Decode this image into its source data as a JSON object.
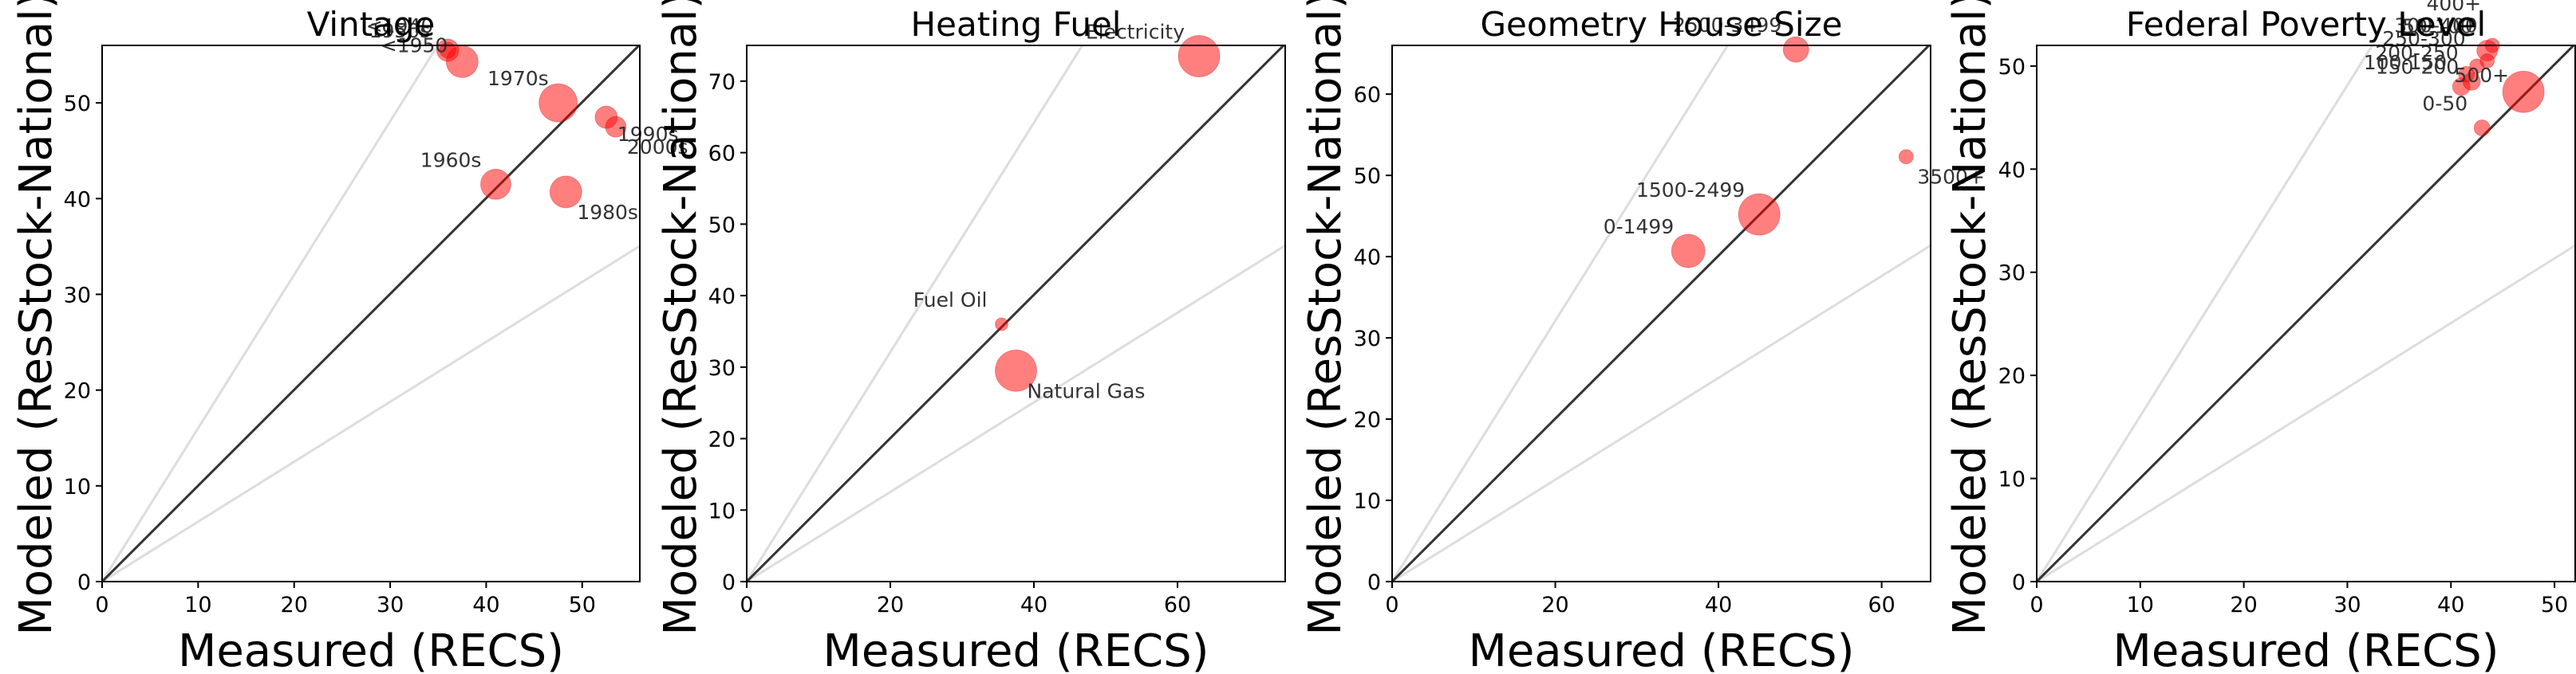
{
  "figure": {
    "background": "#ffffff",
    "marker_color": "#ff0000",
    "marker_edge": "#cc0000",
    "diag_color": "#333333",
    "guide_color": "#dddddd"
  },
  "chart_data": [
    {
      "type": "scatter",
      "title": "Vintage",
      "xlabel": "Measured (RECS)",
      "ylabel": "Modeled (ResStock-National)",
      "xlim": [
        0,
        56
      ],
      "ylim": [
        0,
        56
      ],
      "xticks": [
        0,
        10,
        20,
        30,
        40,
        50
      ],
      "yticks": [
        0,
        10,
        20,
        30,
        40,
        50
      ],
      "points": [
        {
          "label": "<1940",
          "x": 36,
          "y": 55.5,
          "size": 14,
          "label_pos": "upper-left"
        },
        {
          "label": "<1950",
          "x": 37.5,
          "y": 54.3,
          "size": 20,
          "label_pos": "left"
        },
        {
          "label": "1950s",
          "x": 36,
          "y": 55.5,
          "size": 10,
          "label_pos": "left-up"
        },
        {
          "label": "1970s",
          "x": 47.5,
          "y": 50,
          "size": 24,
          "label_pos": "upper-left-far"
        },
        {
          "label": "1990s",
          "x": 52.5,
          "y": 48.5,
          "size": 14,
          "label_pos": "right"
        },
        {
          "label": "2000s",
          "x": 53.5,
          "y": 47.5,
          "size": 13,
          "label_pos": "lower-right"
        },
        {
          "label": "1960s",
          "x": 41,
          "y": 41.5,
          "size": 19,
          "label_pos": "upper-left"
        },
        {
          "label": "1980s",
          "x": 48.3,
          "y": 40.7,
          "size": 20,
          "label_pos": "lower-right"
        }
      ]
    },
    {
      "type": "scatter",
      "title": "Heating Fuel",
      "xlabel": "Measured (RECS)",
      "ylabel": "Modeled (ResStock-National)",
      "xlim": [
        0,
        75
      ],
      "ylim": [
        0,
        75
      ],
      "xticks": [
        0,
        20,
        40,
        60
      ],
      "yticks": [
        0,
        10,
        20,
        30,
        40,
        50,
        60,
        70
      ],
      "points": [
        {
          "label": "Electricity",
          "x": 63,
          "y": 73.5,
          "size": 26,
          "label_pos": "upper-left"
        },
        {
          "label": "Fuel Oil",
          "x": 35.5,
          "y": 36,
          "size": 8,
          "label_pos": "upper-left"
        },
        {
          "label": "Natural Gas",
          "x": 37.5,
          "y": 29.5,
          "size": 26,
          "label_pos": "lower-right"
        }
      ]
    },
    {
      "type": "scatter",
      "title": "Geometry House Size",
      "xlabel": "Measured (RECS)",
      "ylabel": "Modeled (ResStock-National)",
      "xlim": [
        0,
        66
      ],
      "ylim": [
        0,
        66
      ],
      "xticks": [
        0,
        20,
        40,
        60
      ],
      "yticks": [
        0,
        10,
        20,
        30,
        40,
        50,
        60
      ],
      "points": [
        {
          "label": "2500-3499",
          "x": 49.5,
          "y": 65.5,
          "size": 16,
          "label_pos": "upper-left"
        },
        {
          "label": "3500+",
          "x": 63,
          "y": 52.3,
          "size": 9,
          "label_pos": "lower-right"
        },
        {
          "label": "1500-2499",
          "x": 45,
          "y": 45.2,
          "size": 26,
          "label_pos": "upper-left"
        },
        {
          "label": "0-1499",
          "x": 36.3,
          "y": 40.7,
          "size": 21,
          "label_pos": "upper-left"
        }
      ]
    },
    {
      "type": "scatter",
      "title": "Federal Poverty Level",
      "xlabel": "Measured (RECS)",
      "ylabel": "Modeled (ResStock-National)",
      "xlim": [
        0,
        52
      ],
      "ylim": [
        0,
        52
      ],
      "xticks": [
        0,
        10,
        20,
        30,
        40,
        50
      ],
      "yticks": [
        0,
        10,
        20,
        30,
        40,
        50
      ],
      "points": [
        {
          "label": "50-100",
          "x": 43.5,
          "y": 51.5,
          "size": 13,
          "label_pos": "upper-left"
        },
        {
          "label": "100-150",
          "x": 41,
          "y": 48,
          "size": 11,
          "label_pos": "upper-left"
        },
        {
          "label": "150-200",
          "x": 42,
          "y": 48.5,
          "size": 11,
          "label_pos": "upper-left-b"
        },
        {
          "label": "200-250",
          "x": 41.5,
          "y": 49.2,
          "size": 10,
          "label_pos": "upper-left-c"
        },
        {
          "label": "250-300",
          "x": 42.5,
          "y": 50,
          "size": 9,
          "label_pos": "upper-left-d"
        },
        {
          "label": "300-400",
          "x": 43.5,
          "y": 50.5,
          "size": 9,
          "label_pos": "upper-left-e"
        },
        {
          "label": "400+",
          "x": 44,
          "y": 52,
          "size": 9,
          "label_pos": "upper-left-f"
        },
        {
          "label": "500+",
          "x": 47,
          "y": 47.5,
          "size": 26,
          "label_pos": "left"
        },
        {
          "label": "0-50",
          "x": 43,
          "y": 44,
          "size": 10,
          "label_pos": "upper-left"
        }
      ]
    }
  ]
}
